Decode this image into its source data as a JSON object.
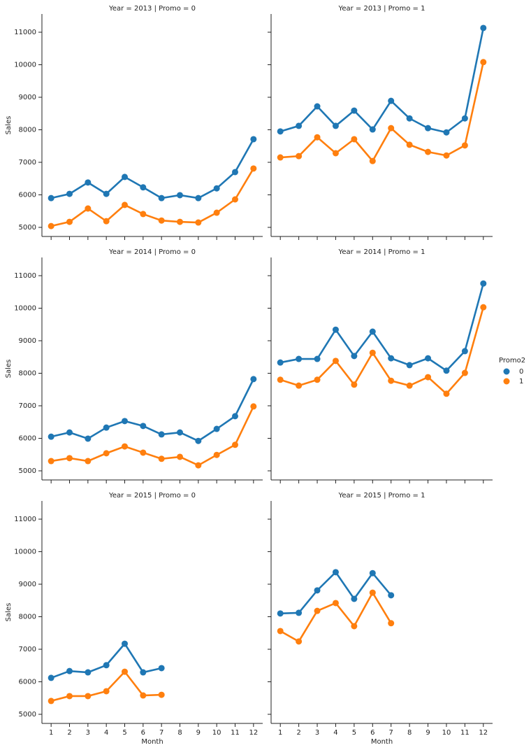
{
  "chart_data": [
    {
      "type": "line",
      "title": "Year = 2013 | Promo = 0",
      "ylabel": "Sales",
      "categories": [
        1,
        2,
        3,
        4,
        5,
        6,
        7,
        8,
        9,
        10,
        11,
        12
      ],
      "series": [
        {
          "name": "0",
          "color": "#1f77b4",
          "values": [
            5900,
            6030,
            6380,
            6030,
            6550,
            6230,
            5900,
            5990,
            5900,
            6200,
            6700,
            7710
          ]
        },
        {
          "name": "1",
          "color": "#ff7f0e",
          "values": [
            5040,
            5170,
            5580,
            5190,
            5690,
            5410,
            5210,
            5170,
            5150,
            5450,
            5860,
            6810
          ]
        }
      ],
      "ylim": [
        4720,
        11560
      ],
      "yticks": [
        5000,
        6000,
        7000,
        8000,
        9000,
        10000,
        11000
      ]
    },
    {
      "type": "line",
      "title": "Year = 2013 | Promo = 1",
      "categories": [
        1,
        2,
        3,
        4,
        5,
        6,
        7,
        8,
        9,
        10,
        11,
        12
      ],
      "series": [
        {
          "name": "0",
          "color": "#1f77b4",
          "values": [
            7950,
            8120,
            8720,
            8120,
            8590,
            8010,
            8890,
            8350,
            8050,
            7920,
            8350,
            11130
          ]
        },
        {
          "name": "1",
          "color": "#ff7f0e",
          "values": [
            7150,
            7190,
            7770,
            7280,
            7710,
            7040,
            8050,
            7540,
            7320,
            7210,
            7520,
            10080
          ]
        }
      ],
      "ylim": [
        4720,
        11560
      ],
      "yticks": [
        5000,
        6000,
        7000,
        8000,
        9000,
        10000,
        11000
      ]
    },
    {
      "type": "line",
      "title": "Year = 2014 | Promo = 0",
      "ylabel": "Sales",
      "categories": [
        1,
        2,
        3,
        4,
        5,
        6,
        7,
        8,
        9,
        10,
        11,
        12
      ],
      "series": [
        {
          "name": "0",
          "color": "#1f77b4",
          "values": [
            6050,
            6180,
            5990,
            6330,
            6530,
            6380,
            6120,
            6180,
            5920,
            6290,
            6680,
            7820
          ]
        },
        {
          "name": "1",
          "color": "#ff7f0e",
          "values": [
            5300,
            5390,
            5300,
            5540,
            5750,
            5560,
            5370,
            5430,
            5170,
            5490,
            5800,
            6980
          ]
        }
      ],
      "ylim": [
        4720,
        11560
      ],
      "yticks": [
        5000,
        6000,
        7000,
        8000,
        9000,
        10000,
        11000
      ]
    },
    {
      "type": "line",
      "title": "Year = 2014 | Promo = 1",
      "legend_title": "Promo2",
      "categories": [
        1,
        2,
        3,
        4,
        5,
        6,
        7,
        8,
        9,
        10,
        11,
        12
      ],
      "series": [
        {
          "name": "0",
          "color": "#1f77b4",
          "values": [
            8330,
            8440,
            8440,
            9340,
            8530,
            9280,
            8460,
            8250,
            8460,
            8080,
            8680,
            10760
          ]
        },
        {
          "name": "1",
          "color": "#ff7f0e",
          "values": [
            7800,
            7620,
            7800,
            8380,
            7650,
            8630,
            7770,
            7620,
            7880,
            7370,
            8010,
            10030
          ]
        }
      ],
      "ylim": [
        4720,
        11560
      ],
      "yticks": [
        5000,
        6000,
        7000,
        8000,
        9000,
        10000,
        11000
      ]
    },
    {
      "type": "line",
      "title": "Year = 2015 | Promo = 0",
      "ylabel": "Sales",
      "xlabel": "Month",
      "categories": [
        1,
        2,
        3,
        4,
        5,
        6,
        7,
        8,
        9,
        10,
        11,
        12
      ],
      "series": [
        {
          "name": "0",
          "color": "#1f77b4",
          "values": [
            6120,
            6330,
            6290,
            6510,
            7170,
            6290,
            6420,
            null,
            null,
            null,
            null,
            null
          ]
        },
        {
          "name": "1",
          "color": "#ff7f0e",
          "values": [
            5410,
            5560,
            5560,
            5710,
            6310,
            5580,
            5600,
            null,
            null,
            null,
            null,
            null
          ]
        }
      ],
      "ylim": [
        4720,
        11560
      ],
      "yticks": [
        5000,
        6000,
        7000,
        8000,
        9000,
        10000,
        11000
      ]
    },
    {
      "type": "line",
      "title": "Year = 2015 | Promo = 1",
      "xlabel": "Month",
      "categories": [
        1,
        2,
        3,
        4,
        5,
        6,
        7,
        8,
        9,
        10,
        11,
        12
      ],
      "series": [
        {
          "name": "0",
          "color": "#1f77b4",
          "values": [
            8100,
            8120,
            8810,
            9370,
            8550,
            9340,
            8660,
            null,
            null,
            null,
            null,
            null
          ]
        },
        {
          "name": "1",
          "color": "#ff7f0e",
          "values": [
            7560,
            7240,
            8180,
            8420,
            7710,
            8740,
            7800,
            null,
            null,
            null,
            null,
            null
          ]
        }
      ],
      "ylim": [
        4720,
        11560
      ],
      "yticks": [
        5000,
        6000,
        7000,
        8000,
        9000,
        10000,
        11000
      ]
    }
  ]
}
